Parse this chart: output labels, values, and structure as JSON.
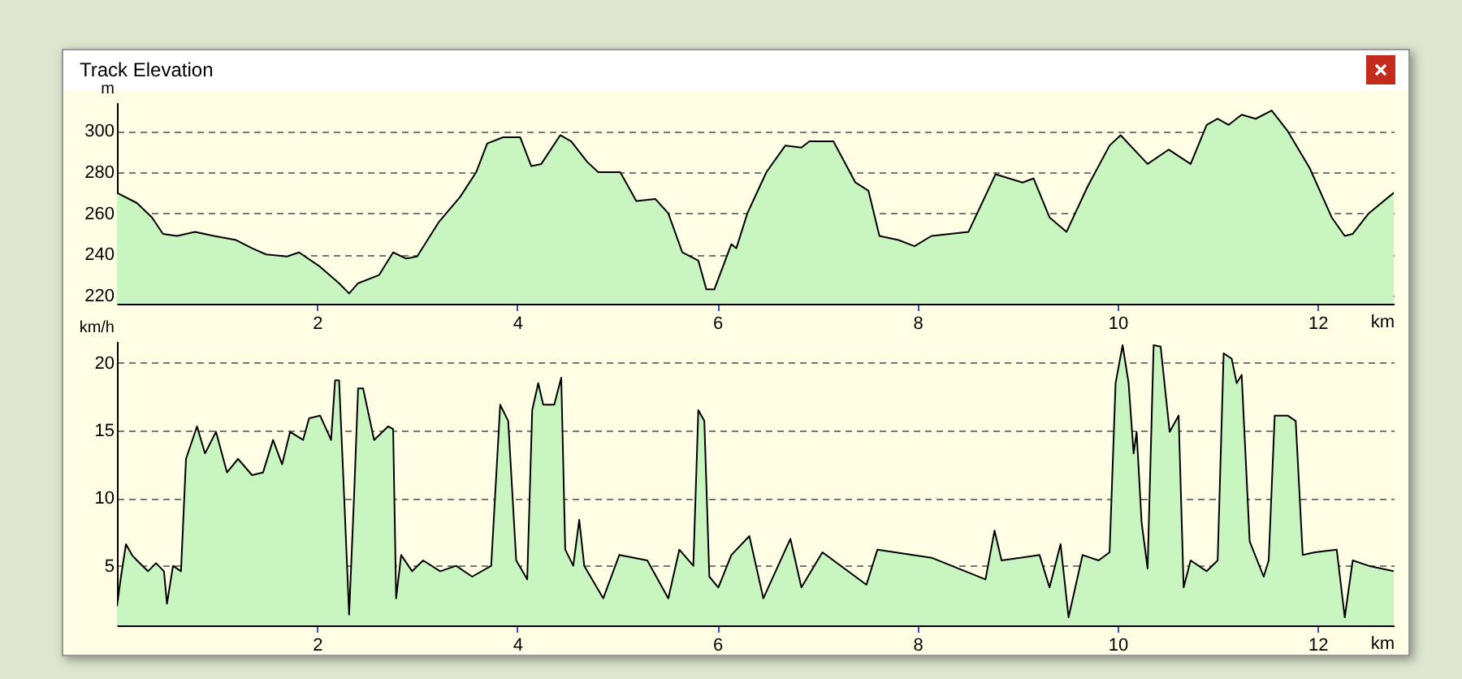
{
  "chart_data": [
    {
      "type": "area",
      "title": "Track Elevation",
      "xlabel": "km",
      "ylabel": "m",
      "x": [
        0,
        0.2,
        0.35,
        0.46,
        0.6,
        0.78,
        0.97,
        1.19,
        1.35,
        1.49,
        1.7,
        1.82,
        2.03,
        2.22,
        2.32,
        2.41,
        2.62,
        2.76,
        2.89,
        3.0,
        3.22,
        3.43,
        3.59,
        3.7,
        3.86,
        4.03,
        4.14,
        4.24,
        4.43,
        4.54,
        4.7,
        4.81,
        5.03,
        5.19,
        5.38,
        5.51,
        5.65,
        5.81,
        5.89,
        5.97,
        6.14,
        6.19,
        6.3,
        6.49,
        6.68,
        6.84,
        6.92,
        7.16,
        7.38,
        7.51,
        7.62,
        7.81,
        7.97,
        8.14,
        8.51,
        8.78,
        9.05,
        9.16,
        9.32,
        9.49,
        9.7,
        9.92,
        10.03,
        10.3,
        10.51,
        10.73,
        10.89,
        11.0,
        11.11,
        11.24,
        11.38,
        11.54,
        11.7,
        11.92,
        12.14,
        12.27,
        12.35,
        12.51,
        12.76
      ],
      "series": [
        {
          "color": "#c8f5c0",
          "values": [
            270,
            265,
            258,
            250,
            249,
            251,
            249,
            247,
            243,
            240,
            239,
            241,
            234,
            226,
            221,
            226,
            230,
            241,
            238,
            239,
            256,
            268,
            280,
            294,
            297,
            297,
            283,
            284,
            298,
            295,
            285,
            280,
            280,
            266,
            267,
            260,
            241,
            237,
            223,
            223,
            245,
            243,
            260,
            280,
            293,
            292,
            295,
            295,
            275,
            271,
            249,
            247,
            244,
            249,
            251,
            279,
            275,
            277,
            258,
            251,
            273,
            293,
            298,
            284,
            291,
            284,
            303,
            306,
            303,
            308,
            306,
            310,
            300,
            282,
            258,
            249,
            250,
            260,
            270
          ]
        }
      ],
      "xlim": [
        0,
        12.76
      ],
      "xticks": [
        2,
        4,
        6,
        8,
        10,
        12
      ],
      "ylim": [
        216,
        314
      ],
      "yticks": [
        220,
        240,
        260,
        280,
        300
      ],
      "grid": "y"
    },
    {
      "type": "area",
      "xlabel": "km",
      "ylabel": "km/h",
      "x": [
        0,
        0.04,
        0.09,
        0.15,
        0.2,
        0.31,
        0.39,
        0.47,
        0.5,
        0.56,
        0.64,
        0.69,
        0.8,
        0.88,
        0.99,
        1.1,
        1.21,
        1.35,
        1.46,
        1.56,
        1.65,
        1.73,
        1.86,
        1.92,
        2.03,
        2.14,
        2.18,
        2.22,
        2.27,
        2.32,
        2.37,
        2.41,
        2.46,
        2.57,
        2.71,
        2.76,
        2.79,
        2.84,
        2.95,
        3.06,
        3.23,
        3.39,
        3.55,
        3.74,
        3.83,
        3.91,
        3.99,
        4.1,
        4.15,
        4.21,
        4.26,
        4.37,
        4.44,
        4.48,
        4.56,
        4.62,
        4.67,
        4.86,
        5.02,
        5.3,
        5.51,
        5.62,
        5.76,
        5.81,
        5.87,
        5.92,
        6.01,
        6.14,
        6.32,
        6.46,
        6.73,
        6.84,
        7.05,
        7.49,
        7.6,
        8.14,
        8.68,
        8.77,
        8.84,
        9.22,
        9.32,
        9.43,
        9.51,
        9.65,
        9.81,
        9.92,
        9.98,
        10.05,
        10.11,
        10.16,
        10.19,
        10.24,
        10.3,
        10.36,
        10.43,
        10.52,
        10.61,
        10.66,
        10.73,
        10.89,
        11.0,
        11.06,
        11.14,
        11.19,
        11.24,
        11.32,
        11.46,
        11.51,
        11.57,
        11.7,
        11.78,
        11.85,
        11.97,
        12.19,
        12.27,
        12.35,
        12.51,
        12.76
      ],
      "series": [
        {
          "color": "#c8f5c0",
          "values": [
            2.0,
            4.2,
            6.6,
            5.8,
            5.4,
            4.6,
            5.2,
            4.6,
            2.2,
            5.0,
            4.6,
            12.9,
            15.3,
            13.3,
            14.9,
            11.9,
            12.9,
            11.7,
            11.9,
            14.3,
            12.5,
            14.9,
            14.3,
            15.9,
            16.1,
            14.3,
            18.7,
            18.7,
            10.2,
            1.4,
            10.2,
            18.1,
            18.1,
            14.3,
            15.3,
            15.1,
            2.6,
            5.8,
            4.6,
            5.4,
            4.6,
            5.0,
            4.2,
            5.0,
            16.9,
            15.7,
            5.4,
            4.0,
            16.5,
            18.5,
            16.9,
            16.9,
            18.9,
            6.2,
            5.0,
            8.4,
            5.0,
            2.6,
            5.8,
            5.4,
            2.6,
            6.2,
            5.0,
            16.5,
            15.7,
            4.2,
            3.4,
            5.8,
            7.2,
            2.6,
            7.0,
            3.4,
            6.0,
            3.6,
            6.2,
            5.6,
            4.0,
            7.6,
            5.4,
            5.8,
            3.4,
            6.6,
            1.2,
            5.8,
            5.4,
            6.0,
            18.5,
            21.3,
            18.5,
            13.3,
            14.9,
            8.2,
            4.8,
            21.3,
            21.2,
            14.9,
            16.1,
            3.4,
            5.4,
            4.6,
            5.4,
            20.7,
            20.3,
            18.5,
            19.1,
            6.8,
            4.2,
            5.4,
            16.1,
            16.1,
            15.7,
            5.8,
            6.0,
            6.2,
            1.2,
            5.4,
            5.0,
            4.6
          ]
        }
      ],
      "xlim": [
        0,
        12.76
      ],
      "xticks": [
        2,
        4,
        6,
        8,
        10,
        12
      ],
      "ylim": [
        0.6,
        21.6
      ],
      "yticks": [
        5,
        10,
        15,
        20
      ],
      "grid": "y"
    }
  ]
}
